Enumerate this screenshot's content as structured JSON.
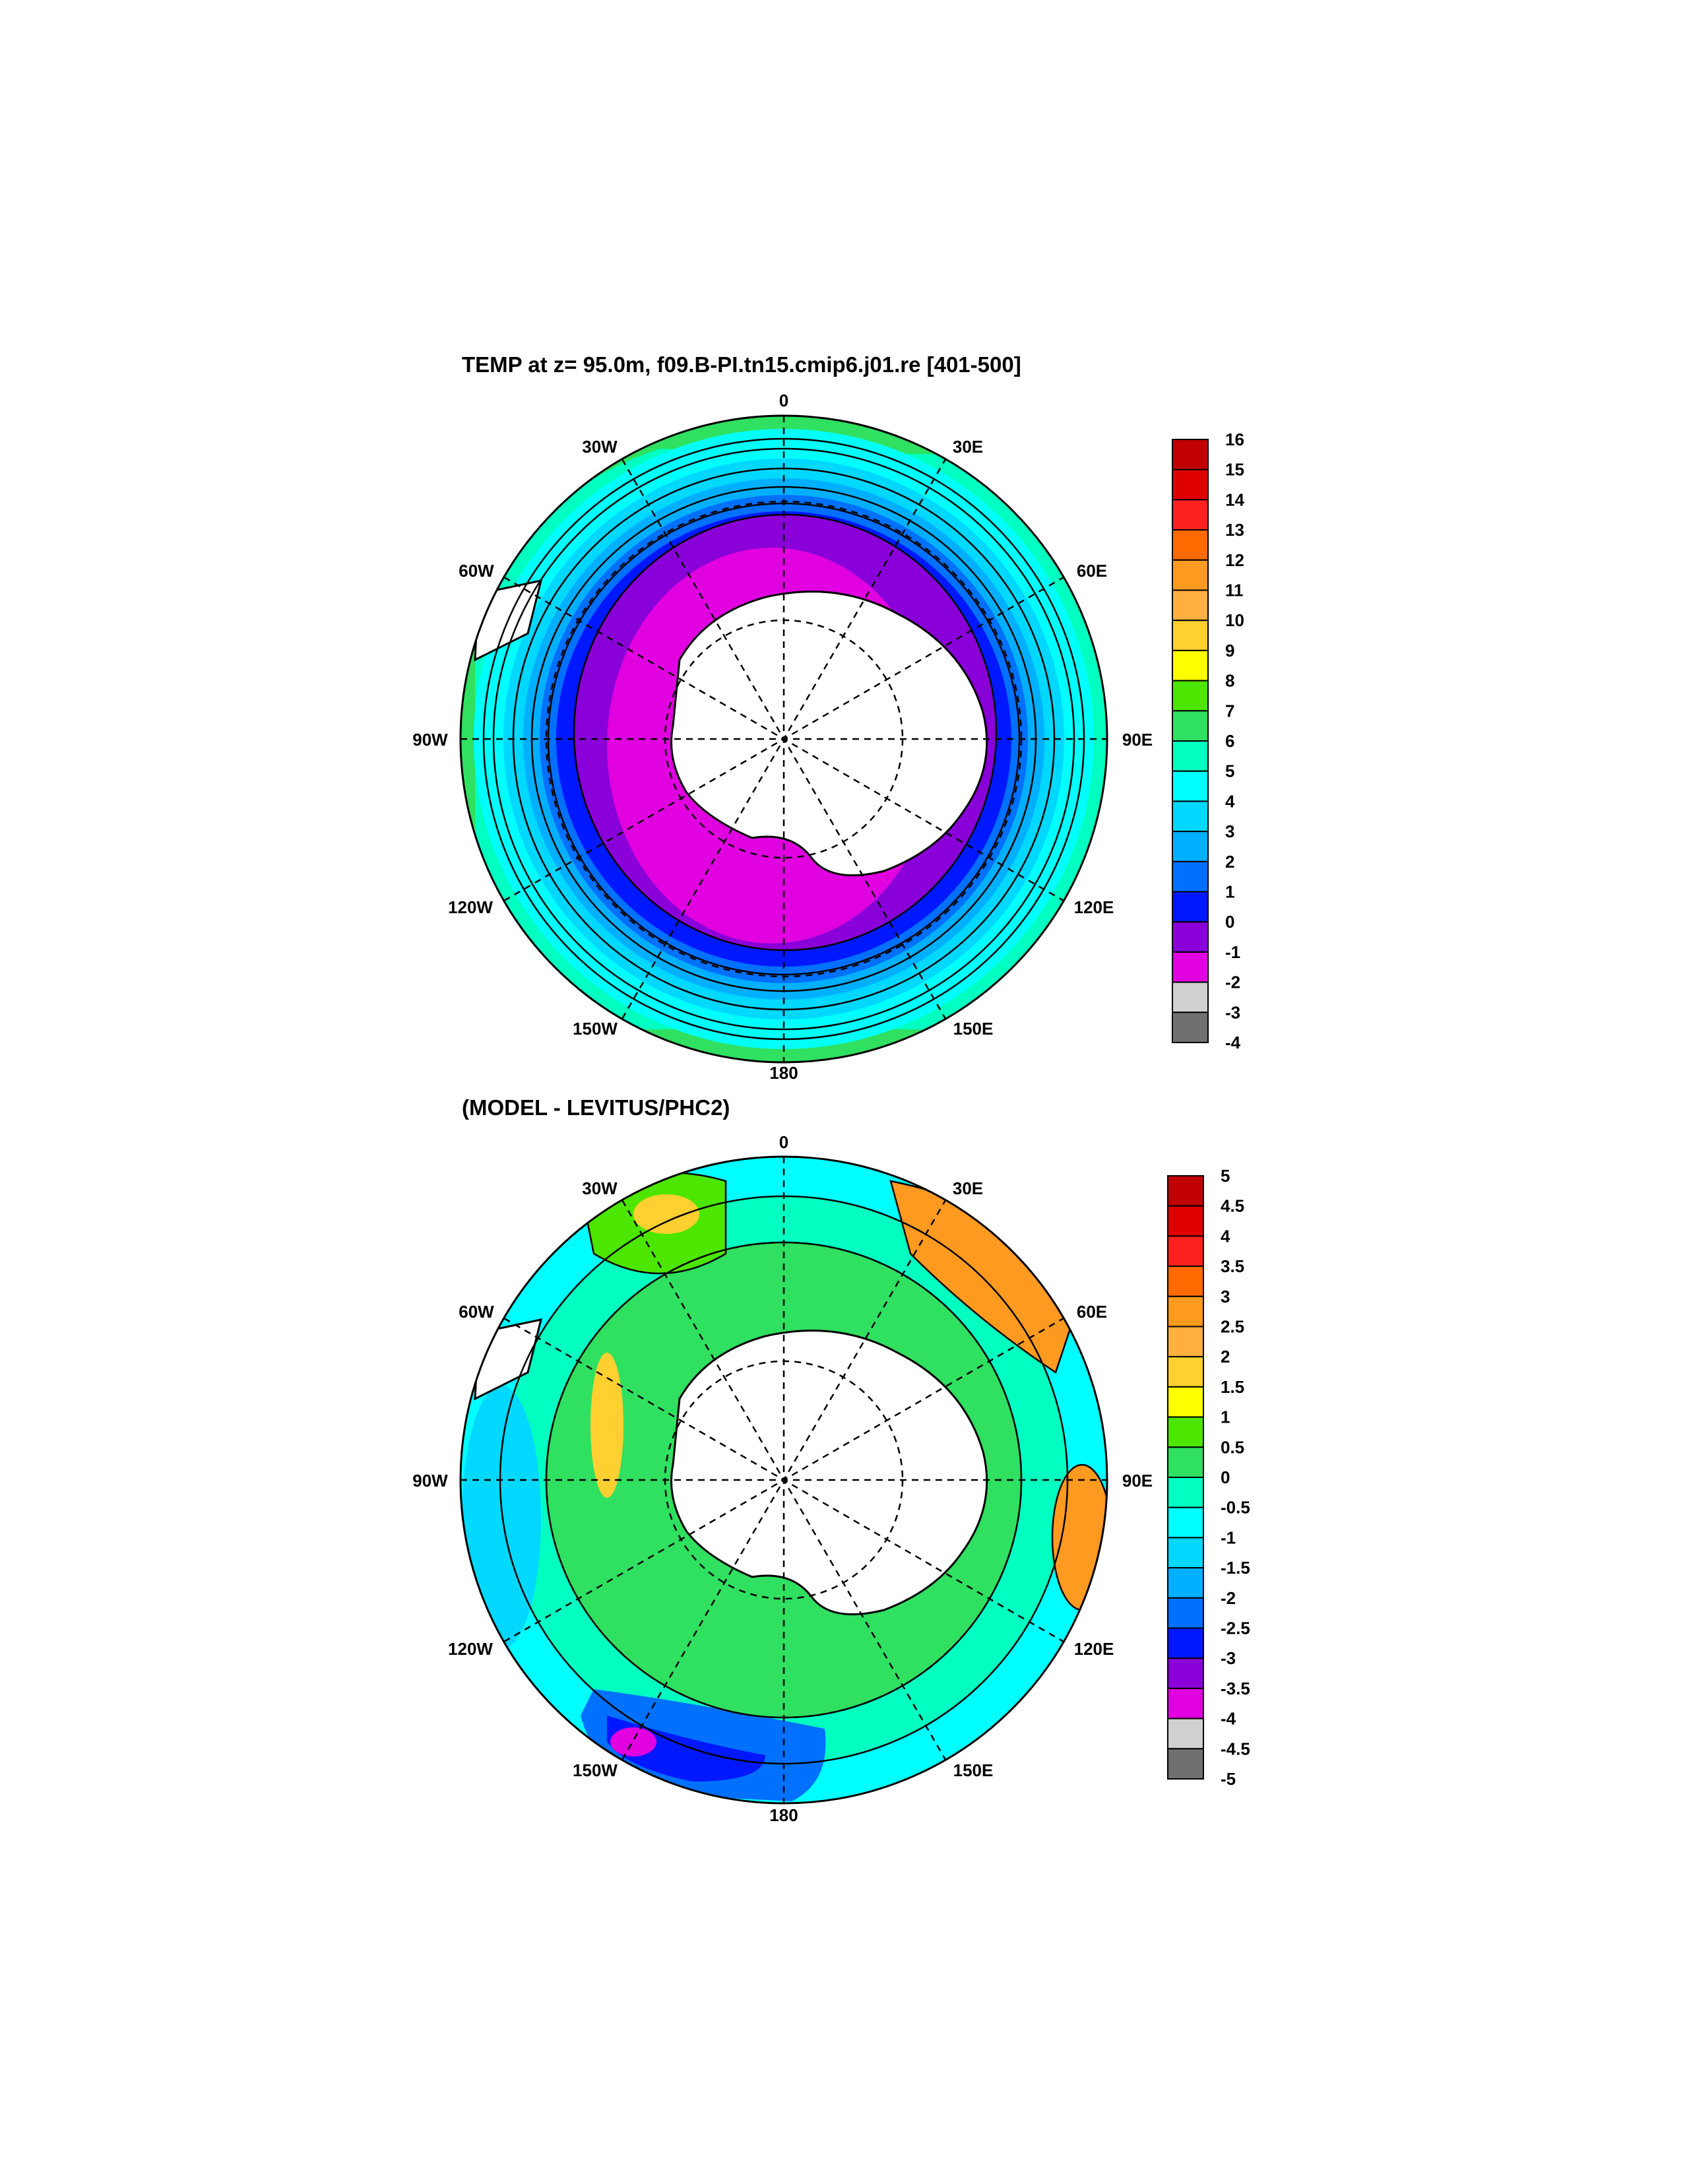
{
  "panels": [
    {
      "id": "top",
      "title": "TEMP at z=  95.0m, f09.B-PI.tn15.cmip6.j01.re [401-500]",
      "lon_labels": {
        "n": "0",
        "ne30": "30E",
        "ne60": "60E",
        "e": "90E",
        "se120": "120E",
        "se150": "150E",
        "s": "180",
        "sw150": "150W",
        "sw120": "120W",
        "w": "90W",
        "nw60": "60W",
        "nw30": "30W"
      },
      "colorbar": {
        "labels": [
          "16",
          "15",
          "14",
          "13",
          "12",
          "11",
          "10",
          "9",
          "8",
          "7",
          "6",
          "5",
          "4",
          "3",
          "2",
          "1",
          "0",
          "-1",
          "-2",
          "-3",
          "-4"
        ],
        "colors": [
          "#c00000",
          "#e00000",
          "#ff2020",
          "#ff6a00",
          "#ff9a20",
          "#ffb040",
          "#ffd030",
          "#ffff00",
          "#4ce600",
          "#30e060",
          "#00ffc0",
          "#00ffff",
          "#00d8ff",
          "#00b0ff",
          "#0070ff",
          "#0018ff",
          "#8a00d8",
          "#e000e0",
          "#d0d0d0",
          "#707070"
        ]
      }
    },
    {
      "id": "bottom",
      "title": "(MODEL - LEVITUS/PHC2)",
      "lon_labels": {
        "n": "0",
        "ne30": "30E",
        "ne60": "60E",
        "e": "90E",
        "se120": "120E",
        "se150": "150E",
        "s": "180",
        "sw150": "150W",
        "sw120": "120W",
        "w": "90W",
        "nw60": "60W",
        "nw30": "30W"
      },
      "colorbar": {
        "labels": [
          "5",
          "4.5",
          "4",
          "3.5",
          "3",
          "2.5",
          "2",
          "1.5",
          "1",
          "0.5",
          "0",
          "-0.5",
          "-1",
          "-1.5",
          "-2",
          "-2.5",
          "-3",
          "-3.5",
          "-4",
          "-4.5",
          "-5"
        ],
        "colors": [
          "#c00000",
          "#e00000",
          "#ff2020",
          "#ff6a00",
          "#ff9a20",
          "#ffb040",
          "#ffd030",
          "#ffff00",
          "#4ce600",
          "#30e060",
          "#00ffc0",
          "#00ffff",
          "#00d8ff",
          "#00b0ff",
          "#0070ff",
          "#0018ff",
          "#8a00d8",
          "#e000e0",
          "#d0d0d0",
          "#707070"
        ]
      }
    }
  ]
}
